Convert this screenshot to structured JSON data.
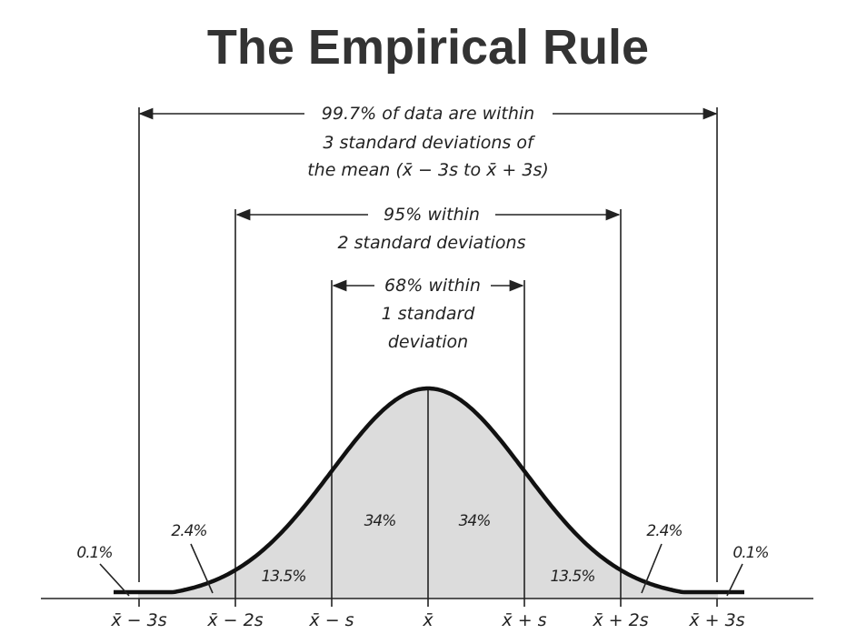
{
  "title": "The Empirical Rule",
  "annotations": {
    "range3": {
      "lines": [
        "99.7% of data are within",
        "3 standard deviations of",
        "the mean (x̄ − 3s to x̄ + 3s)"
      ],
      "percent": 99.7
    },
    "range2": {
      "lines": [
        "95% within",
        "2 standard deviations"
      ],
      "percent": 95
    },
    "range1": {
      "lines": [
        "68% within",
        "1 standard",
        "deviation"
      ],
      "percent": 68
    }
  },
  "region_labels": {
    "left_tail": "0.1%",
    "left_2_3": "2.4%",
    "left_1_2": "13.5%",
    "left_0_1": "34%",
    "right_0_1": "34%",
    "right_1_2": "13.5%",
    "right_2_3": "2.4%",
    "right_tail": "0.1%"
  },
  "axis_ticks": [
    "x̄ − 3s",
    "x̄ − 2s",
    "x̄ − s",
    "x̄",
    "x̄ + s",
    "x̄ + 2s",
    "x̄ + 3s"
  ],
  "colors": {
    "fill": "#dcdcdc",
    "curve": "#111111",
    "title": "#333333"
  }
}
